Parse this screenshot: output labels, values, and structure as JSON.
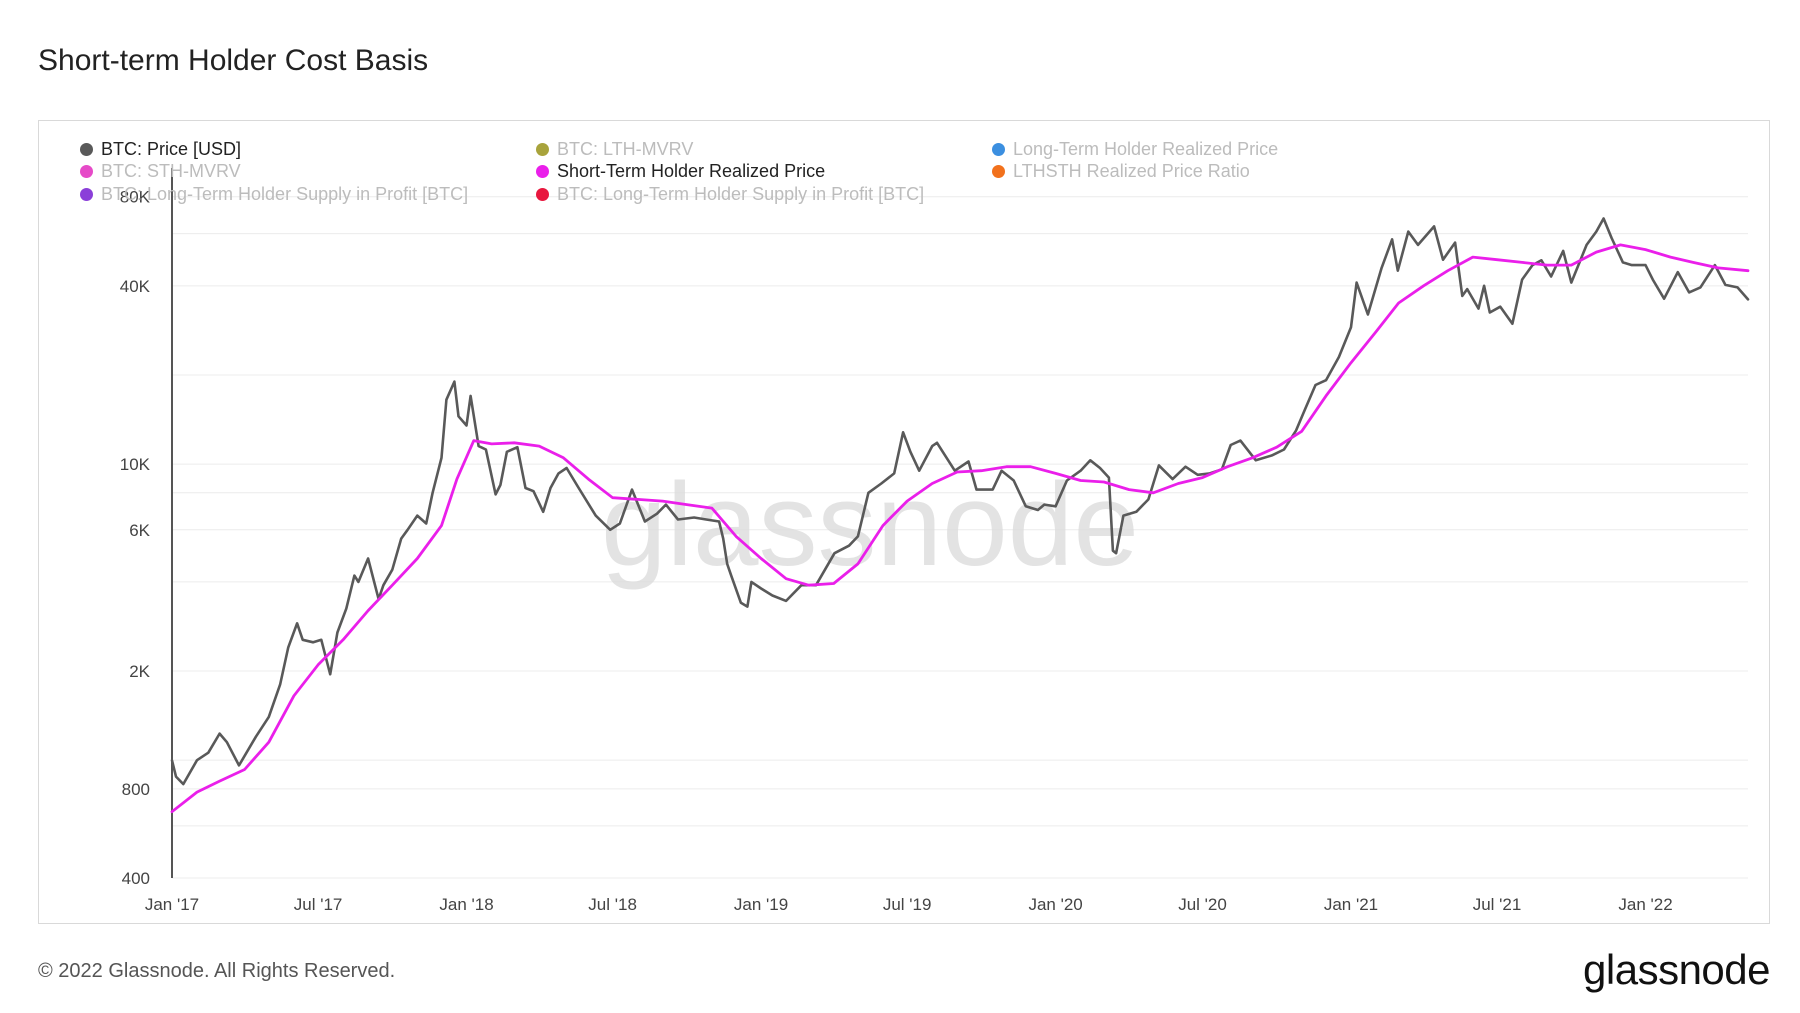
{
  "title": "Short-term Holder Cost Basis",
  "footer": {
    "copyright": "© 2022 Glassnode. All Rights Reserved.",
    "logo": "glassnode"
  },
  "watermark": "glassnode",
  "legend": [
    {
      "label": "BTC: Price [USD]",
      "color": "#595959",
      "active": true
    },
    {
      "label": "BTC: LTH-MVRV",
      "color": "#a8a33c",
      "active": false
    },
    {
      "label": "Long-Term Holder Realized Price",
      "color": "#3b8fe0",
      "active": false
    },
    {
      "label": "BTC: STH-MVRV",
      "color": "#e64ac8",
      "active": false
    },
    {
      "label": "Short-Term Holder Realized Price",
      "color": "#ea1fea",
      "active": true
    },
    {
      "label": "LTHSTH Realized Price Ratio",
      "color": "#f2711c",
      "active": false
    },
    {
      "label": "BTC: Long-Term Holder Supply in Profit [BTC]",
      "color": "#8b3fd9",
      "active": false
    },
    {
      "label": "BTC: Long-Term Holder Supply in Profit [BTC]",
      "color": "#e8173e",
      "active": false
    }
  ],
  "chart_data": {
    "type": "line",
    "title": "Short-term Holder Cost Basis",
    "y_scale": "log",
    "ylim": [
      400,
      100000
    ],
    "y_ticks": [
      400,
      800,
      2000,
      6000,
      10000,
      40000,
      80000
    ],
    "y_tick_labels": [
      "400",
      "800",
      "2K",
      "6K",
      "10K",
      "40K",
      "80K"
    ],
    "x_range": [
      "2017-01-01",
      "2022-05-08"
    ],
    "x_ticks": [
      "2017-01-01",
      "2017-07-01",
      "2018-01-01",
      "2018-07-01",
      "2019-01-01",
      "2019-07-01",
      "2020-01-01",
      "2020-07-01",
      "2021-01-01",
      "2021-07-01",
      "2022-01-01"
    ],
    "x_tick_labels": [
      "Jan '17",
      "Jul '17",
      "Jan '18",
      "Jul '18",
      "Jan '19",
      "Jul '19",
      "Jan '20",
      "Jul '20",
      "Jan '21",
      "Jul '21",
      "Jan '22"
    ],
    "grid": true,
    "legend_position": "top-left",
    "series": [
      {
        "name": "BTC: Price [USD]",
        "color": "#595959",
        "x": [
          "2017-01-01",
          "2017-01-06",
          "2017-01-15",
          "2017-02-01",
          "2017-02-15",
          "2017-03-01",
          "2017-03-10",
          "2017-03-25",
          "2017-04-15",
          "2017-05-01",
          "2017-05-15",
          "2017-05-25",
          "2017-06-05",
          "2017-06-12",
          "2017-06-25",
          "2017-07-05",
          "2017-07-16",
          "2017-07-25",
          "2017-08-05",
          "2017-08-15",
          "2017-08-20",
          "2017-09-01",
          "2017-09-14",
          "2017-09-20",
          "2017-10-01",
          "2017-10-12",
          "2017-10-20",
          "2017-11-01",
          "2017-11-12",
          "2017-11-20",
          "2017-12-01",
          "2017-12-07",
          "2017-12-17",
          "2017-12-22",
          "2018-01-01",
          "2018-01-06",
          "2018-01-16",
          "2018-01-25",
          "2018-02-06",
          "2018-02-12",
          "2018-02-20",
          "2018-03-05",
          "2018-03-15",
          "2018-03-25",
          "2018-04-06",
          "2018-04-15",
          "2018-04-25",
          "2018-05-05",
          "2018-05-20",
          "2018-06-10",
          "2018-06-28",
          "2018-07-10",
          "2018-07-25",
          "2018-08-10",
          "2018-08-25",
          "2018-09-05",
          "2018-09-20",
          "2018-10-10",
          "2018-10-25",
          "2018-11-10",
          "2018-11-15",
          "2018-11-20",
          "2018-11-25",
          "2018-12-07",
          "2018-12-15",
          "2018-12-20",
          "2019-01-01",
          "2019-01-15",
          "2019-02-01",
          "2019-02-20",
          "2019-03-10",
          "2019-04-02",
          "2019-04-20",
          "2019-05-01",
          "2019-05-14",
          "2019-05-30",
          "2019-06-15",
          "2019-06-26",
          "2019-07-05",
          "2019-07-16",
          "2019-08-01",
          "2019-08-07",
          "2019-08-29",
          "2019-09-15",
          "2019-09-25",
          "2019-10-15",
          "2019-10-26",
          "2019-11-10",
          "2019-11-25",
          "2019-12-10",
          "2019-12-18",
          "2020-01-01",
          "2020-01-15",
          "2020-02-01",
          "2020-02-13",
          "2020-02-25",
          "2020-03-07",
          "2020-03-12",
          "2020-03-16",
          "2020-03-25",
          "2020-04-10",
          "2020-04-25",
          "2020-05-08",
          "2020-05-25",
          "2020-06-10",
          "2020-06-25",
          "2020-07-10",
          "2020-07-25",
          "2020-08-05",
          "2020-08-17",
          "2020-09-05",
          "2020-09-25",
          "2020-10-10",
          "2020-10-25",
          "2020-11-05",
          "2020-11-18",
          "2020-12-01",
          "2020-12-17",
          "2021-01-01",
          "2021-01-08",
          "2021-01-22",
          "2021-02-08",
          "2021-02-21",
          "2021-02-28",
          "2021-03-13",
          "2021-03-25",
          "2021-04-14",
          "2021-04-25",
          "2021-05-10",
          "2021-05-19",
          "2021-05-25",
          "2021-06-08",
          "2021-06-15",
          "2021-06-22",
          "2021-07-05",
          "2021-07-20",
          "2021-08-01",
          "2021-08-14",
          "2021-08-25",
          "2021-09-06",
          "2021-09-21",
          "2021-10-01",
          "2021-10-20",
          "2021-11-01",
          "2021-11-10",
          "2021-11-20",
          "2021-12-04",
          "2021-12-15",
          "2022-01-01",
          "2022-01-10",
          "2022-01-24",
          "2022-02-10",
          "2022-02-24",
          "2022-03-10",
          "2022-03-28",
          "2022-04-10",
          "2022-04-25",
          "2022-05-08"
        ],
        "y": [
          998,
          880,
          830,
          1000,
          1060,
          1230,
          1150,
          960,
          1200,
          1400,
          1800,
          2400,
          2900,
          2550,
          2500,
          2550,
          1950,
          2700,
          3250,
          4200,
          4000,
          4800,
          3500,
          3900,
          4400,
          5600,
          6000,
          6700,
          6300,
          8000,
          10500,
          16500,
          19000,
          14500,
          13500,
          17000,
          11500,
          11200,
          7900,
          8500,
          11000,
          11400,
          8300,
          8100,
          6900,
          8300,
          9300,
          9700,
          8300,
          6700,
          6000,
          6300,
          8200,
          6400,
          6800,
          7300,
          6500,
          6600,
          6500,
          6400,
          5600,
          4600,
          4200,
          3400,
          3300,
          4000,
          3800,
          3600,
          3450,
          3900,
          3900,
          5000,
          5300,
          5700,
          8000,
          8600,
          9300,
          12800,
          11000,
          9500,
          11500,
          11800,
          9500,
          10200,
          8200,
          8200,
          9500,
          8800,
          7200,
          7000,
          7300,
          7200,
          8800,
          9500,
          10300,
          9700,
          9000,
          5100,
          5000,
          6700,
          6900,
          7600,
          9900,
          8900,
          9800,
          9200,
          9300,
          9600,
          11600,
          12000,
          10300,
          10700,
          11200,
          13000,
          15300,
          18500,
          19200,
          23000,
          29000,
          41000,
          32000,
          46000,
          57400,
          45000,
          61000,
          55000,
          63500,
          49000,
          56000,
          37000,
          39000,
          33500,
          40000,
          32500,
          34000,
          29800,
          42000,
          47000,
          48800,
          43000,
          52500,
          41000,
          55000,
          61000,
          67500,
          58000,
          48000,
          47000,
          47000,
          42000,
          36200,
          44500,
          38000,
          39500,
          47000,
          40300,
          39500,
          36000
        ]
      },
      {
        "name": "Short-Term Holder Realized Price",
        "color": "#ea1fea",
        "x": [
          "2017-01-01",
          "2017-02-01",
          "2017-03-01",
          "2017-04-01",
          "2017-05-01",
          "2017-06-01",
          "2017-07-01",
          "2017-08-01",
          "2017-09-01",
          "2017-10-01",
          "2017-11-01",
          "2017-12-01",
          "2017-12-20",
          "2018-01-10",
          "2018-02-01",
          "2018-03-01",
          "2018-04-01",
          "2018-05-01",
          "2018-06-01",
          "2018-07-01",
          "2018-08-01",
          "2018-09-01",
          "2018-10-01",
          "2018-11-01",
          "2018-12-01",
          "2019-01-01",
          "2019-02-01",
          "2019-03-01",
          "2019-04-01",
          "2019-05-01",
          "2019-06-01",
          "2019-07-01",
          "2019-08-01",
          "2019-09-01",
          "2019-10-01",
          "2019-11-01",
          "2019-12-01",
          "2020-01-01",
          "2020-02-01",
          "2020-03-01",
          "2020-04-01",
          "2020-05-01",
          "2020-06-01",
          "2020-07-01",
          "2020-08-01",
          "2020-09-01",
          "2020-10-01",
          "2020-11-01",
          "2020-12-01",
          "2021-01-01",
          "2021-02-01",
          "2021-03-01",
          "2021-04-01",
          "2021-05-01",
          "2021-06-01",
          "2021-07-01",
          "2021-08-01",
          "2021-09-01",
          "2021-10-01",
          "2021-11-01",
          "2021-12-01",
          "2022-01-01",
          "2022-02-01",
          "2022-03-01",
          "2022-04-01",
          "2022-05-08"
        ],
        "y": [
          670,
          780,
          850,
          930,
          1150,
          1650,
          2100,
          2550,
          3200,
          3900,
          4800,
          6200,
          8900,
          12000,
          11700,
          11800,
          11500,
          10500,
          8900,
          7700,
          7600,
          7500,
          7300,
          7100,
          5700,
          4800,
          4100,
          3900,
          3950,
          4600,
          6200,
          7500,
          8600,
          9400,
          9500,
          9800,
          9800,
          9300,
          8800,
          8700,
          8200,
          8000,
          8600,
          9000,
          9800,
          10500,
          11400,
          12900,
          17000,
          22000,
          28000,
          35000,
          40000,
          45000,
          50000,
          49000,
          48000,
          47000,
          47000,
          52000,
          55000,
          53000,
          50000,
          48000,
          46000,
          45000
        ]
      }
    ]
  }
}
